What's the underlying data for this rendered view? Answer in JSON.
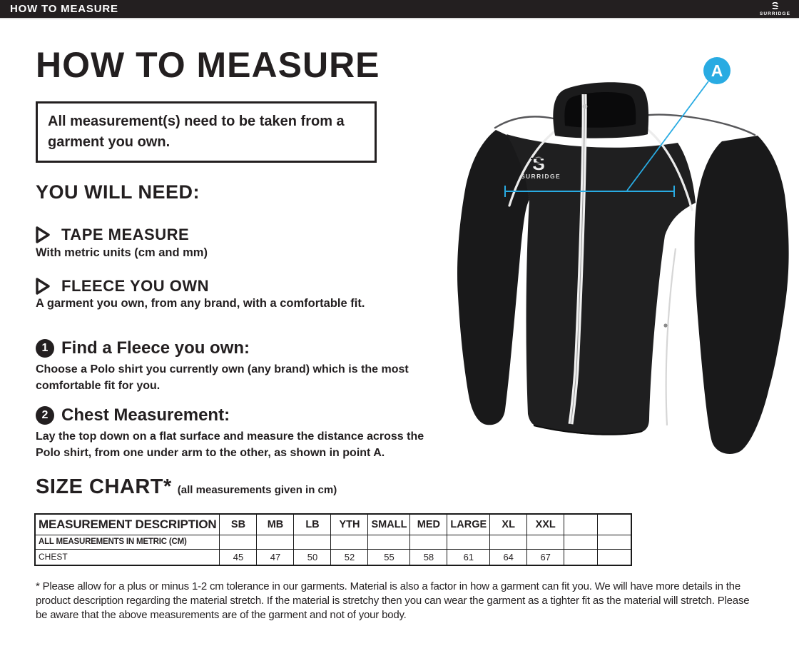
{
  "header": {
    "title": "HOW TO MEASURE",
    "brand": "SURRIDGE",
    "logo_letter": "S"
  },
  "page": {
    "title": "HOW TO MEASURE",
    "note": "All measurement(s) need to be taken from a garment you own.",
    "you_will_need": {
      "heading": "YOU WILL NEED:",
      "items": [
        {
          "title": "TAPE MEASURE",
          "description": "With metric units (cm and mm)"
        },
        {
          "title": "FLEECE YOU OWN",
          "description": "A garment you own, from any brand, with a comfortable fit."
        }
      ]
    },
    "steps": [
      {
        "number": "1",
        "title": "Find a Fleece you own:",
        "description": "Choose a Polo shirt you currently own (any brand) which is the most comfortable fit for you."
      },
      {
        "number": "2",
        "title": "Chest Measurement:",
        "description": "Lay the top down on a flat surface and measure the distance across the Polo shirt, from one under arm to the other, as shown in point A."
      }
    ],
    "size_chart": {
      "heading": "SIZE CHART*",
      "subtitle": "(all measurements given in cm)",
      "table": {
        "description_header": "MEASUREMENT DESCRIPTION",
        "columns": [
          "SB",
          "MB",
          "LB",
          "YTH",
          "SMALL",
          "MED",
          "LARGE",
          "XL",
          "XXL",
          "",
          ""
        ],
        "rows": [
          {
            "label": "ALL MEASUREMENTS IN METRIC (CM)",
            "values": [
              "",
              "",
              "",
              "",
              "",
              "",
              "",
              "",
              "",
              "",
              ""
            ]
          },
          {
            "label": "CHEST",
            "values": [
              "45",
              "47",
              "50",
              "52",
              "55",
              "58",
              "61",
              "64",
              "67",
              "",
              ""
            ]
          }
        ]
      }
    },
    "footnote": "* Please allow for a plus or minus 1-2 cm tolerance in our garments. Material is also a factor in how a garment can fit you. We will have more details in the product description regarding the material stretch.  If the material is stretchy then you can wear the garment as a tighter fit as the material will stretch.  Please be aware that the above measurements are of the garment and not of your body."
  },
  "jacket": {
    "chest_logo": "SURRIDGE",
    "logo_letter": "S"
  },
  "annotation": {
    "label": "A"
  },
  "colors": {
    "accent_blue": "#29abe2",
    "ink": "#231f20"
  }
}
